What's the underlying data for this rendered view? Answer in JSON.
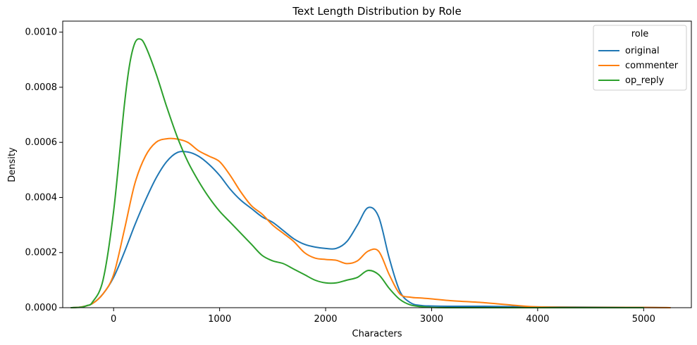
{
  "chart_data": {
    "type": "line",
    "title": "Text Length Distribution by Role",
    "xlabel": "Characters",
    "ylabel": "Density",
    "xlim": [
      -480,
      5450
    ],
    "ylim": [
      0,
      0.00104
    ],
    "x_ticks": [
      0,
      1000,
      2000,
      3000,
      4000,
      5000
    ],
    "y_ticks": [
      0.0,
      0.0002,
      0.0004,
      0.0006,
      0.0008,
      0.001
    ],
    "y_tick_labels": [
      "0.0000",
      "0.0002",
      "0.0004",
      "0.0006",
      "0.0008",
      "0.0010"
    ],
    "grid": false,
    "legend": {
      "title": "role",
      "position": "top-right"
    },
    "series": [
      {
        "name": "original",
        "color": "#1f77b4",
        "points": [
          [
            -400,
            0
          ],
          [
            -300,
            3e-06
          ],
          [
            -200,
            1.5e-05
          ],
          [
            -100,
            5e-05
          ],
          [
            0,
            0.00011
          ],
          [
            100,
            0.0002
          ],
          [
            200,
            0.0003
          ],
          [
            300,
            0.00039
          ],
          [
            400,
            0.00047
          ],
          [
            500,
            0.00053
          ],
          [
            600,
            0.000563
          ],
          [
            700,
            0.000565
          ],
          [
            800,
            0.00055
          ],
          [
            900,
            0.00052
          ],
          [
            1000,
            0.00048
          ],
          [
            1100,
            0.00043
          ],
          [
            1200,
            0.00039
          ],
          [
            1300,
            0.00036
          ],
          [
            1400,
            0.00033
          ],
          [
            1500,
            0.00031
          ],
          [
            1600,
            0.00028
          ],
          [
            1700,
            0.00025
          ],
          [
            1800,
            0.00023
          ],
          [
            1900,
            0.00022
          ],
          [
            2000,
            0.000215
          ],
          [
            2100,
            0.000215
          ],
          [
            2200,
            0.00024
          ],
          [
            2300,
            0.0003
          ],
          [
            2400,
            0.000363
          ],
          [
            2500,
            0.00033
          ],
          [
            2600,
            0.00018
          ],
          [
            2700,
            6e-05
          ],
          [
            2800,
            1.8e-05
          ],
          [
            2900,
            8e-06
          ],
          [
            3000,
            6e-06
          ],
          [
            3200,
            5e-06
          ],
          [
            3500,
            5e-06
          ],
          [
            4000,
            3e-06
          ],
          [
            4500,
            2e-06
          ],
          [
            5000,
            1e-06
          ],
          [
            5250,
            0
          ]
        ]
      },
      {
        "name": "commenter",
        "color": "#ff7f0e",
        "points": [
          [
            -400,
            0
          ],
          [
            -300,
            3e-06
          ],
          [
            -200,
            1.5e-05
          ],
          [
            -100,
            5e-05
          ],
          [
            0,
            0.00012
          ],
          [
            100,
            0.00028
          ],
          [
            200,
            0.00045
          ],
          [
            300,
            0.00055
          ],
          [
            400,
            0.0006
          ],
          [
            500,
            0.000613
          ],
          [
            600,
            0.000612
          ],
          [
            700,
            0.0006
          ],
          [
            800,
            0.00057
          ],
          [
            900,
            0.00055
          ],
          [
            1000,
            0.00053
          ],
          [
            1100,
            0.00048
          ],
          [
            1200,
            0.00042
          ],
          [
            1300,
            0.00037
          ],
          [
            1400,
            0.00034
          ],
          [
            1500,
            0.0003
          ],
          [
            1600,
            0.00027
          ],
          [
            1700,
            0.00024
          ],
          [
            1800,
            0.0002
          ],
          [
            1900,
            0.00018
          ],
          [
            2000,
            0.000175
          ],
          [
            2100,
            0.000172
          ],
          [
            2200,
            0.00016
          ],
          [
            2300,
            0.00017
          ],
          [
            2400,
            0.000205
          ],
          [
            2500,
            0.000205
          ],
          [
            2600,
            0.00012
          ],
          [
            2700,
            5e-05
          ],
          [
            2800,
            3.8e-05
          ],
          [
            2900,
            3.5e-05
          ],
          [
            3000,
            3.2e-05
          ],
          [
            3200,
            2.5e-05
          ],
          [
            3500,
            1.8e-05
          ],
          [
            3800,
            8e-06
          ],
          [
            4000,
            3e-06
          ],
          [
            4500,
            1e-06
          ],
          [
            5000,
            1e-06
          ],
          [
            5250,
            0
          ]
        ]
      },
      {
        "name": "op_reply",
        "color": "#2ca02c",
        "points": [
          [
            -400,
            0
          ],
          [
            -300,
            2e-06
          ],
          [
            -250,
            8e-06
          ],
          [
            -200,
            2e-05
          ],
          [
            -100,
            0.0001
          ],
          [
            0,
            0.00035
          ],
          [
            100,
            0.00073
          ],
          [
            150,
            0.00088
          ],
          [
            200,
            0.00096
          ],
          [
            250,
            0.000975
          ],
          [
            300,
            0.00095
          ],
          [
            400,
            0.00085
          ],
          [
            500,
            0.00073
          ],
          [
            600,
            0.00062
          ],
          [
            700,
            0.00053
          ],
          [
            800,
            0.00046
          ],
          [
            900,
            0.0004
          ],
          [
            1000,
            0.00035
          ],
          [
            1100,
            0.00031
          ],
          [
            1200,
            0.00027
          ],
          [
            1300,
            0.00023
          ],
          [
            1400,
            0.00019
          ],
          [
            1500,
            0.00017
          ],
          [
            1600,
            0.00016
          ],
          [
            1700,
            0.00014
          ],
          [
            1800,
            0.00012
          ],
          [
            1900,
            0.0001
          ],
          [
            2000,
            9e-05
          ],
          [
            2100,
            9e-05
          ],
          [
            2200,
            0.0001
          ],
          [
            2300,
            0.00011
          ],
          [
            2400,
            0.000135
          ],
          [
            2500,
            0.00012
          ],
          [
            2600,
            7e-05
          ],
          [
            2700,
            3e-05
          ],
          [
            2800,
            1e-05
          ],
          [
            2900,
            4e-06
          ],
          [
            3000,
            1e-06
          ],
          [
            3200,
            0
          ],
          [
            3500,
            0
          ],
          [
            4000,
            0
          ],
          [
            5000,
            0
          ]
        ]
      }
    ]
  }
}
